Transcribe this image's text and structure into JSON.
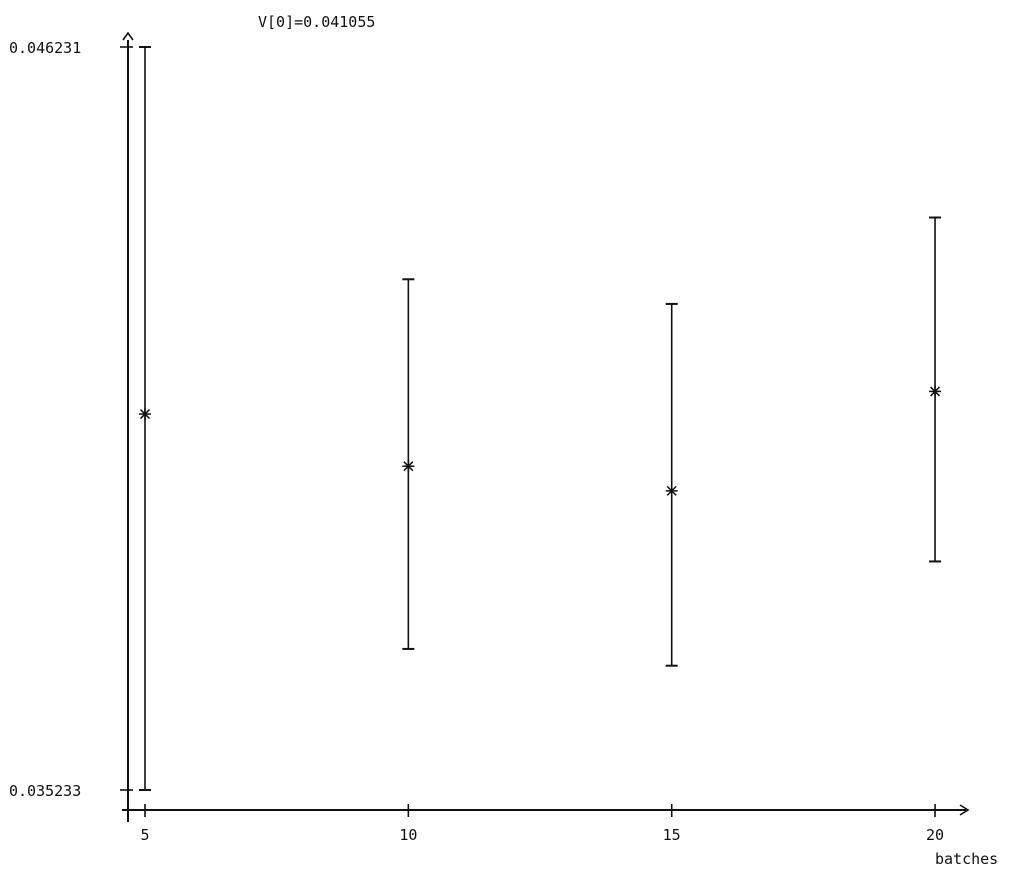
{
  "chart_data": {
    "type": "errorbar",
    "title": "V[0]=0.041055",
    "xlabel": "batches",
    "ylabel": "",
    "ylim": [
      0.035233,
      0.046231
    ],
    "ytick_labels": [
      "0.046231",
      "0.035233"
    ],
    "xticks": [
      5,
      10,
      15,
      20
    ],
    "xtick_labels": [
      "5",
      "10",
      "15",
      "20"
    ],
    "points": [
      {
        "x": 5,
        "mean": 0.040798,
        "low": 0.035233,
        "high": 0.046231
      },
      {
        "x": 10,
        "mean": 0.040026,
        "low": 0.037321,
        "high": 0.042793
      },
      {
        "x": 15,
        "mean": 0.039661,
        "low": 0.037073,
        "high": 0.042428
      },
      {
        "x": 20,
        "mean": 0.041133,
        "low": 0.038616,
        "high": 0.043707
      }
    ],
    "marker": "asterisk",
    "colors": {
      "ink": "#111111"
    }
  }
}
